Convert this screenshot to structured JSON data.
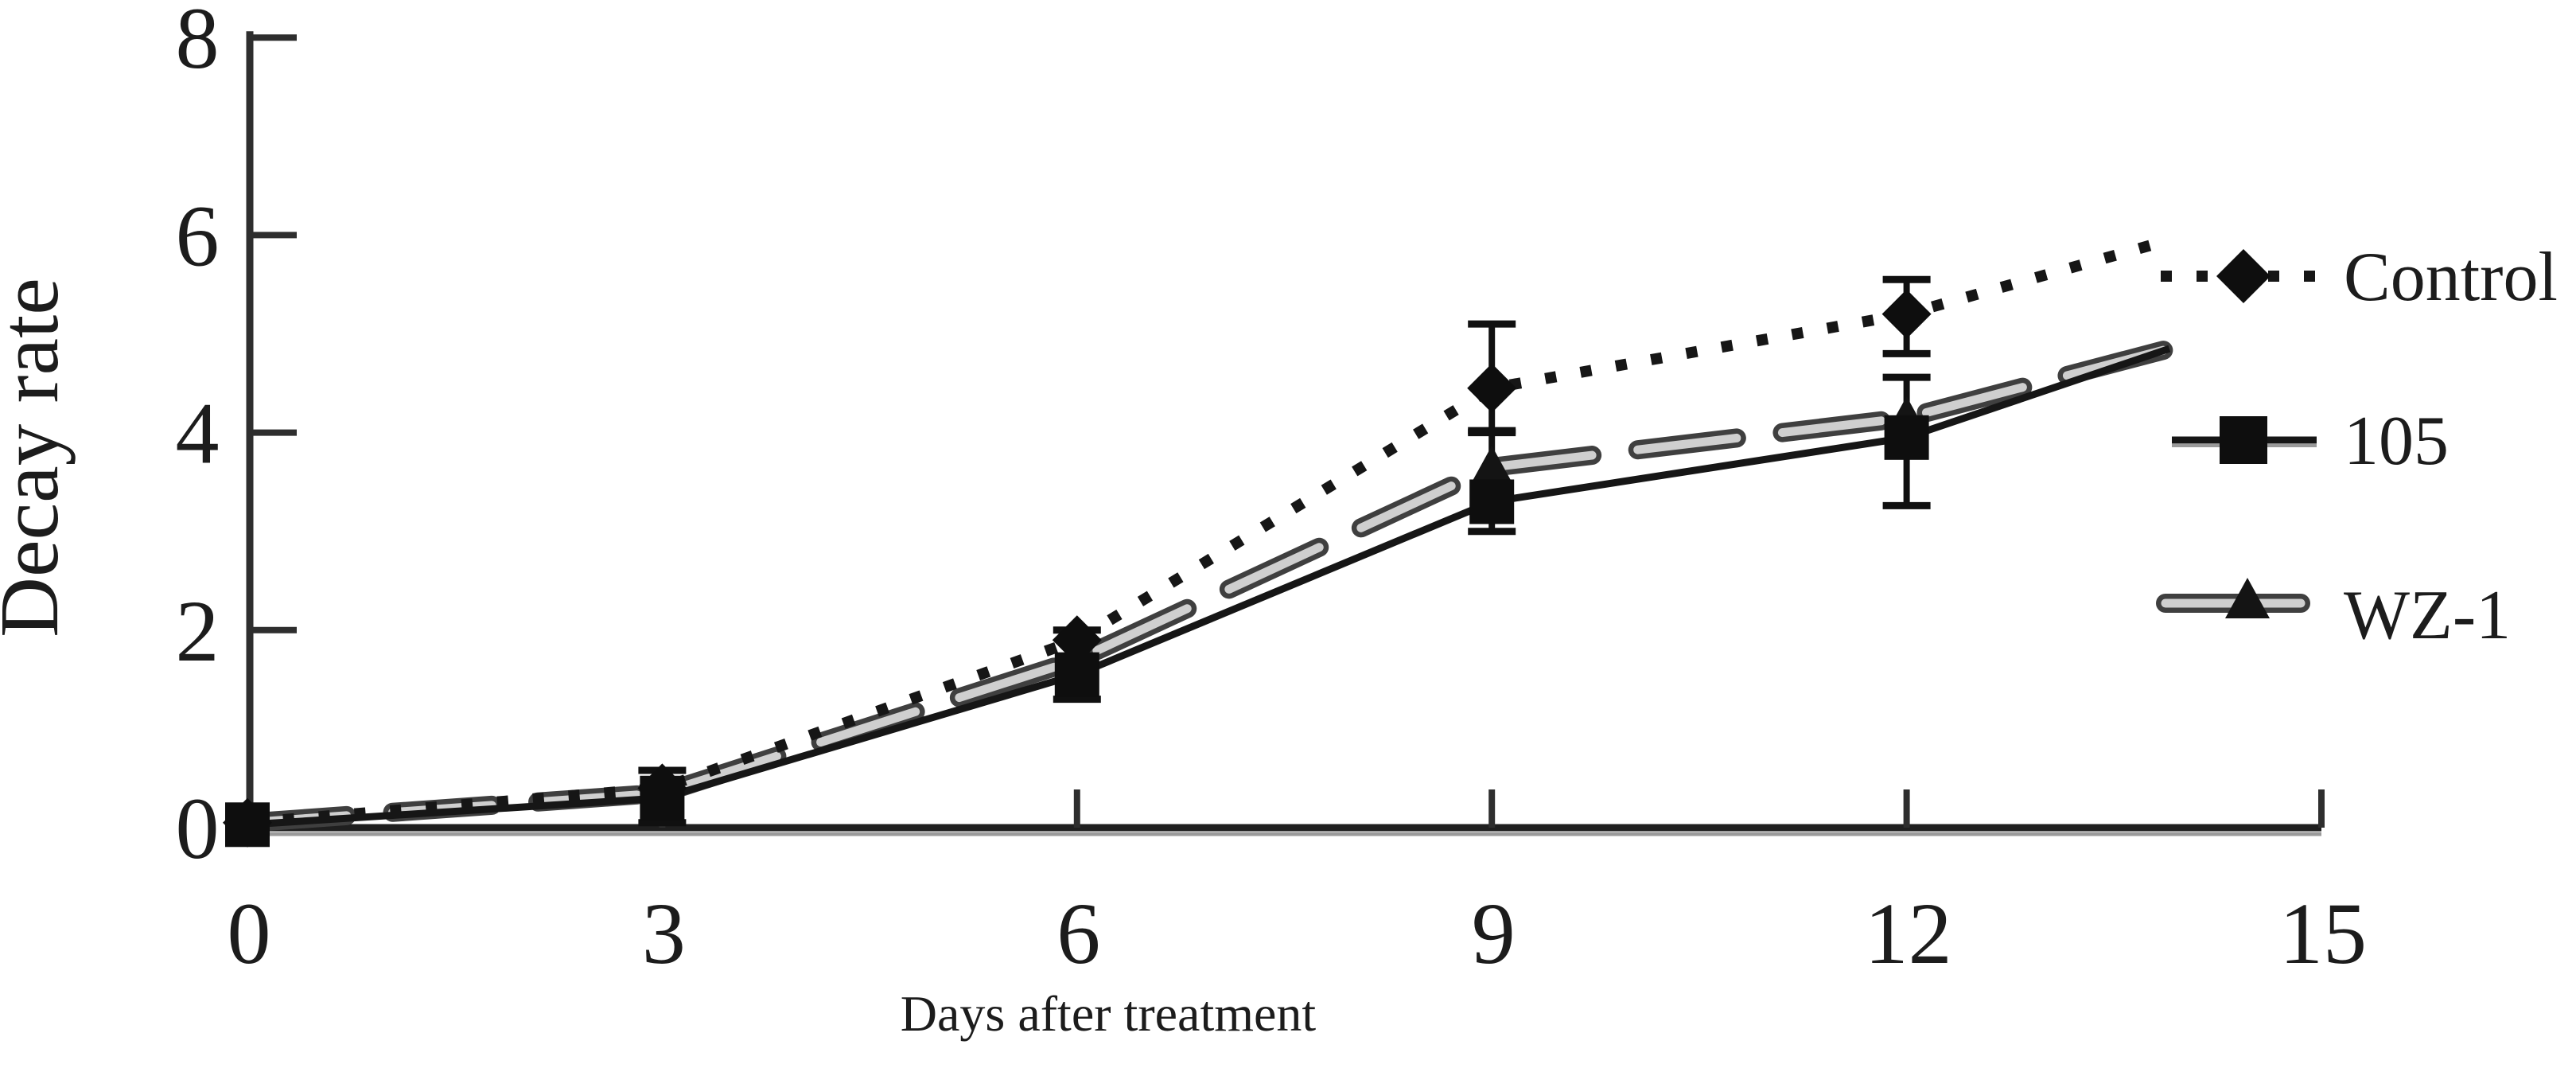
{
  "figure": {
    "background": "#ffffff",
    "ink_color": "#1c1c1c",
    "axis_color": "#2e2e2e",
    "axis_shadow_color": "#9a9a9a",
    "wz1_outline_color": "#3f3f3f",
    "wz1_core_color": "#cfcfcf"
  },
  "chart_data": {
    "type": "line",
    "title": "",
    "xlabel": "Days after treatment",
    "ylabel": "Decay rate",
    "xlim": [
      0,
      15.3
    ],
    "ylim": [
      0,
      8
    ],
    "x_ticks": [
      0,
      3,
      6,
      9,
      12,
      15
    ],
    "y_ticks": [
      0,
      2,
      4,
      6,
      8
    ],
    "grid": false,
    "legend_position": "right",
    "series": [
      {
        "name": "Control",
        "marker": "diamond",
        "line_style": "dotted",
        "color": "#161616",
        "x": [
          0,
          3,
          6,
          9,
          12,
          13.9
        ],
        "values": [
          0.05,
          0.4,
          1.9,
          4.45,
          5.2,
          5.95
        ],
        "marker_x": [
          0,
          3,
          6,
          9,
          12
        ],
        "error_bars": [
          {
            "x": 9,
            "low": 4.0,
            "high": 5.1
          },
          {
            "x": 12,
            "low": 4.8,
            "high": 5.55
          }
        ]
      },
      {
        "name": "105",
        "marker": "square",
        "line_style": "solid",
        "color": "#161616",
        "x": [
          0,
          3,
          6,
          9,
          12,
          13.9
        ],
        "values": [
          0.03,
          0.3,
          1.55,
          3.3,
          3.95,
          4.85
        ],
        "marker_x": [
          0,
          3,
          6,
          9,
          12
        ],
        "error_bars": [
          {
            "x": 3,
            "low": 0.05,
            "high": 0.58
          },
          {
            "x": 6,
            "low": 1.3,
            "high": 2.0
          },
          {
            "x": 9,
            "low": 3.0,
            "high": 4.02
          },
          {
            "x": 12,
            "low": 3.26,
            "high": 4.56
          }
        ]
      },
      {
        "name": "WZ-1",
        "marker": "triangle",
        "line_style": "capsule-dash",
        "color": "#555555",
        "x": [
          0,
          3,
          6,
          9,
          12,
          13.9
        ],
        "values": [
          0.05,
          0.35,
          1.7,
          3.65,
          4.15,
          4.85
        ],
        "marker_x": [
          0,
          3,
          6,
          9,
          12
        ],
        "error_bars": []
      }
    ]
  }
}
